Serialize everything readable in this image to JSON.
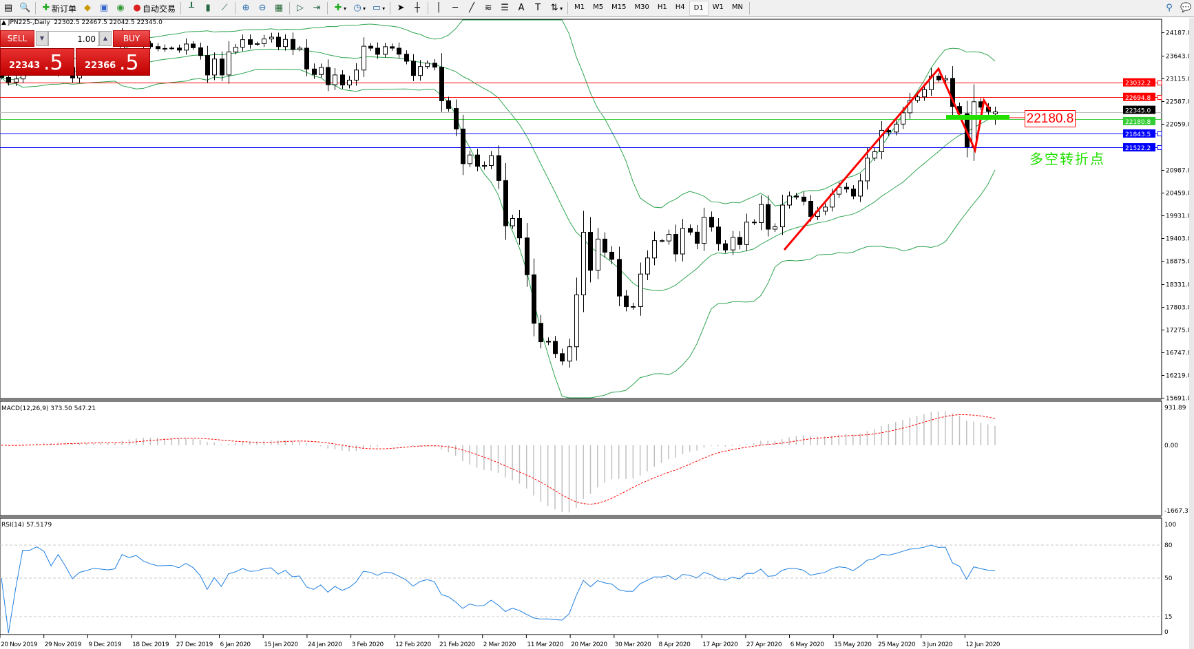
{
  "toolbar": {
    "new_order": "新订单",
    "auto_trading": "自动交易",
    "timeframes": [
      "M1",
      "M5",
      "M15",
      "M30",
      "H1",
      "H4",
      "D1",
      "W1",
      "MN"
    ],
    "active_timeframe": "D1"
  },
  "chart_header": {
    "symbol": "JPN225-,Daily",
    "ohlc": "22302.5 22467.5 22042.5 22345.0"
  },
  "trade_panel": {
    "sell_label": "SELL",
    "buy_label": "BUY",
    "lot": "1.00",
    "sell_price_main": "22343",
    "sell_price_frac": ".5",
    "buy_price_main": "22366",
    "buy_price_frac": ".5"
  },
  "annotations": {
    "level_box": "22180.8",
    "turning_point_text": "多空转折点"
  },
  "colors": {
    "bollinger": "#2ea44f",
    "bull_body": "#ffffff",
    "bear_body": "#000000",
    "rsi_line": "#1e7fe0",
    "macd_hist": "#c0c0c0",
    "macd_signal": "#ff0000",
    "annotation": "#ff0000",
    "turning_point": "#22e000"
  },
  "chart_data": {
    "type": "candlestick",
    "indicators": [
      "Bollinger Bands(20,2)",
      "MACD(12,26,9)",
      "RSI(14)"
    ],
    "closes": [
      23148,
      23038,
      23112,
      23373,
      23373,
      23437,
      23409,
      23293,
      23529,
      23379,
      23135,
      23300,
      23354,
      23430,
      23410,
      23391,
      23424,
      24023,
      23952,
      24066,
      23934,
      23864,
      23816,
      23821,
      23830,
      23782,
      23924,
      23837,
      23656,
      23204,
      23575,
      23204,
      23739,
      23850,
      24025,
      23916,
      23933,
      24041,
      24083,
      23864,
      24031,
      23795,
      23827,
      23343,
      23215,
      23379,
      22977,
      23205,
      22971,
      23084,
      23319,
      23873,
      23827,
      23685,
      23861,
      23827,
      23687,
      23523,
      23193,
      23400,
      23479,
      23386,
      22605,
      22426,
      21948,
      21142,
      21344,
      21082,
      21100,
      21329,
      20749,
      19698,
      19867,
      19416,
      18559,
      17431,
      17002,
      17011,
      16726,
      16552,
      16887,
      18092,
      19546,
      18664,
      19389,
      19084,
      18917,
      18065,
      17818,
      17820,
      18576,
      18950,
      19353,
      19345,
      19498,
      19043,
      19638,
      19550,
      19290,
      19897,
      19669,
      19280,
      19137,
      19429,
      19262,
      19783,
      19771,
      20193,
      19619,
      19674,
      20179,
      20390,
      20366,
      20267,
      19914,
      20037,
      20133,
      20433,
      20595,
      20552,
      20388,
      20741,
      21271,
      21419,
      21916,
      21877,
      22062,
      22325,
      22613,
      22695,
      22863,
      23178,
      23091,
      23124,
      22472,
      22305,
      21530,
      22582,
      22455,
      22355,
      22345
    ],
    "last_bar": {
      "open": 22302.5,
      "high": 22467.5,
      "low": 22042.5,
      "close": 22345.0
    },
    "price_axis": {
      "ticks": [
        "24187.0",
        "23643.0",
        "23115.0",
        "22587.0",
        "22059.0",
        "20987.0",
        "20459.0",
        "19931.0",
        "19403.0",
        "18875.0",
        "18331.0",
        "17803.0",
        "17275.0",
        "16747.0",
        "16219.0",
        "15691.0"
      ]
    },
    "levels": [
      {
        "value": "23032.2",
        "color": "#ff0000",
        "label_bg": "#ff0000",
        "marker": true
      },
      {
        "value": "22694.8",
        "color": "#ff0000",
        "label_bg": "#ff0000",
        "marker": true
      },
      {
        "value": "22345.0",
        "color": "#c0c0c0",
        "label_bg": "#000000",
        "marker": false
      },
      {
        "value": "22180.8",
        "color": "#33cc33",
        "label_bg": "#33cc33",
        "marker": false
      },
      {
        "value": "21843.5",
        "color": "#0000ff",
        "label_bg": "#0000ff",
        "marker": true
      },
      {
        "value": "21522.2",
        "color": "#0000ff",
        "label_bg": "#0000ff",
        "marker": true
      }
    ],
    "macd": {
      "label": "MACD(12,26,9) 373.50 547.21",
      "ticks": [
        "931.89",
        "0.00",
        "-1667.31"
      ],
      "range": [
        -1667.31,
        931.89
      ]
    },
    "rsi": {
      "label": "RSI(14) 57.5179",
      "ticks": [
        "100",
        "80",
        "50",
        "15",
        "0"
      ],
      "levels": [
        80,
        50,
        15
      ]
    },
    "date_labels": [
      "20 Nov 2019",
      "29 Nov 2019",
      "9 Dec 2019",
      "18 Dec 2019",
      "27 Dec 2019",
      "6 Jan 2020",
      "15 Jan 2020",
      "24 Jan 2020",
      "3 Feb 2020",
      "12 Feb 2020",
      "21 Feb 2020",
      "2 Mar 2020",
      "11 Mar 2020",
      "20 Mar 2020",
      "30 Mar 2020",
      "8 Apr 2020",
      "17 Apr 2020",
      "27 Apr 2020",
      "6 May 2020",
      "15 May 2020",
      "25 May 2020",
      "3 Jun 2020",
      "12 Jun 2020"
    ]
  }
}
